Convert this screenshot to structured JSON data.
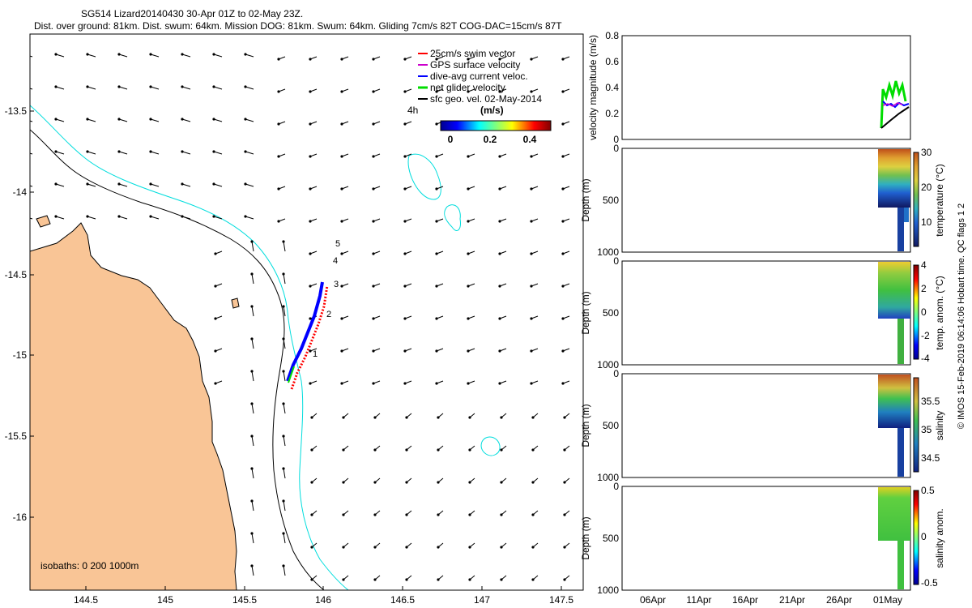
{
  "header": {
    "line1": "SG514 Lizard20140430 30-Apr 01Z to 02-May 23Z.",
    "line2": "Dist. over ground: 81km. Dist. swum: 64km. Mission DOG: 81km. Swum: 64km. Gliding 7cm/s 82T COG-DAC=15cm/s 87T"
  },
  "map": {
    "x_ticks": [
      "144.5",
      "145",
      "145.5",
      "146",
      "146.5",
      "147",
      "147.5"
    ],
    "y_ticks": [
      "-13.5",
      "-14",
      "-14.5",
      "-15",
      "-15.5",
      "-16"
    ],
    "legend": [
      {
        "label": "25cm/s swim vector",
        "color": "#ff0000"
      },
      {
        "label": "GPS surface velocity",
        "color": "#cc00cc"
      },
      {
        "label": "dive-avg current veloc.",
        "color": "#0000ff"
      },
      {
        "label": "net glider velocity",
        "color": "#00dd00"
      },
      {
        "label": "sfc geo. vel. 02-May-2014",
        "color": "#000000"
      }
    ],
    "time_label": "4h",
    "colorbar_label": "(m/s)",
    "colorbar_ticks": [
      "0",
      "0.2",
      "0.4"
    ],
    "day_labels": [
      "1",
      "2",
      "3",
      "4",
      "5"
    ],
    "isobaths_label": "isobaths: 0   200  1000m",
    "colors": {
      "land": "#f9c596",
      "isobath_200": "#000000",
      "isobath_1000": "#00dddd"
    }
  },
  "panels": {
    "velocity": {
      "ylabel": "velocity magnitude (m/s)",
      "y_ticks": [
        "0",
        "0.2",
        "0.4",
        "0.6",
        "0.8"
      ]
    },
    "depth_ylabel": "Depth (m)",
    "depth_ticks": [
      "0",
      "500",
      "1000"
    ],
    "x_ticks": [
      "06Apr",
      "11Apr",
      "16Apr",
      "21Apr",
      "26Apr",
      "01May"
    ],
    "temperature": {
      "cblabel": "temperature (°C)",
      "ticks": [
        "30",
        "20",
        "10"
      ]
    },
    "temp_anom": {
      "cblabel": "temp. anom. (°C)",
      "ticks": [
        "4",
        "2",
        "0",
        "-2",
        "-4"
      ]
    },
    "salinity": {
      "cblabel": "salinity",
      "ticks": [
        "35.5",
        "35",
        "34.5"
      ]
    },
    "sal_anom": {
      "cblabel": "salinity anom.",
      "ticks": [
        "0.5",
        "0",
        "-0.5"
      ]
    }
  },
  "footer": "© IMOS 15-Feb-2019 06:14:06 Hobart time. QC flags 1  2"
}
